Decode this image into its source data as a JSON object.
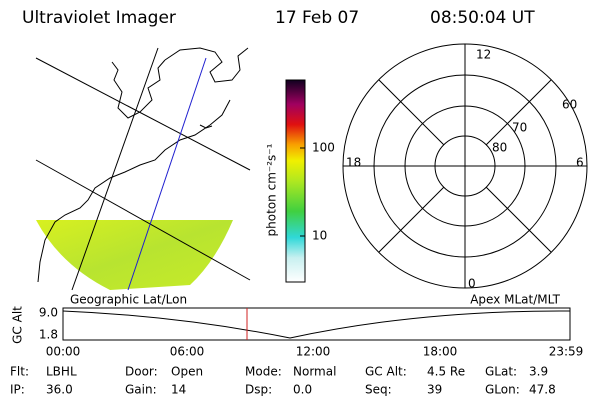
{
  "header": {
    "title": "Ultraviolet Imager",
    "date": "17 Feb 07",
    "time": "08:50:04 UT"
  },
  "colorbar": {
    "label": "photon cm⁻²s⁻¹",
    "ticks": [
      "100",
      "10"
    ]
  },
  "polar": {
    "mlt_labels": [
      "12",
      "18",
      "6",
      "0"
    ],
    "lat_labels": [
      "60",
      "70",
      "80"
    ]
  },
  "timeline": {
    "left_label": "Geographic Lat/Lon",
    "right_label": "Apex MLat/MLT",
    "y_label": "GC Alt",
    "y_ticks": [
      "9.0",
      "1.8"
    ],
    "x_ticks": [
      "00:00",
      "06:00",
      "12:00",
      "18:00",
      "23:59"
    ]
  },
  "status": [
    {
      "label": "Flt:",
      "value": "LBHL"
    },
    {
      "label": "IP:",
      "value": "36.0"
    },
    {
      "label": "Door:",
      "value": "Open"
    },
    {
      "label": "Gain:",
      "value": "14"
    },
    {
      "label": "Mode:",
      "value": "Normal"
    },
    {
      "label": "Dsp:",
      "value": "0.0"
    },
    {
      "label": "GC Alt:",
      "value": "4.5 Re"
    },
    {
      "label": "Seq:",
      "value": "39"
    },
    {
      "label": "GLat:",
      "value": "3.9"
    },
    {
      "label": "GLon:",
      "value": "47.8"
    }
  ]
}
